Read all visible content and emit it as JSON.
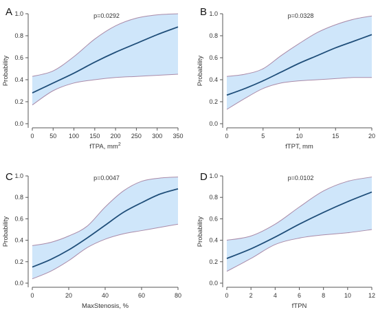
{
  "chart_data": [
    {
      "type": "line",
      "panel_label": "A",
      "annotation": "p=0.0292",
      "xlabel": "fTPA, mm",
      "xlabel_superscript": "2",
      "ylabel": "Probability",
      "xlim": [
        0,
        350
      ],
      "ylim": [
        0,
        1
      ],
      "xticks": [
        "0",
        "50",
        "100",
        "150",
        "200",
        "250",
        "300",
        "350"
      ],
      "yticks": [
        "0.0",
        "0.2",
        "0.4",
        "0.6",
        "0.8",
        "1.0"
      ],
      "x": [
        0,
        50,
        100,
        150,
        200,
        250,
        300,
        350
      ],
      "y": [
        0.28,
        0.37,
        0.46,
        0.56,
        0.65,
        0.73,
        0.81,
        0.88
      ],
      "ci_lower": [
        0.17,
        0.3,
        0.37,
        0.4,
        0.42,
        0.43,
        0.44,
        0.45
      ],
      "ci_upper": [
        0.43,
        0.48,
        0.61,
        0.77,
        0.89,
        0.96,
        0.99,
        1.0
      ],
      "colors": {
        "line": "#1f4e79",
        "band": "#cfe6fa",
        "band_edge": "#a98aa8"
      }
    },
    {
      "type": "line",
      "panel_label": "B",
      "annotation": "p=0.0328",
      "xlabel": "fTPT, mm",
      "ylabel": "Probability",
      "xlim": [
        0,
        20
      ],
      "ylim": [
        0,
        1
      ],
      "xticks": [
        "0",
        "5",
        "10",
        "15",
        "20"
      ],
      "yticks": [
        "0.0",
        "0.2",
        "0.4",
        "0.6",
        "0.8",
        "1.0"
      ],
      "x": [
        0,
        2.5,
        5,
        7.5,
        10,
        12.5,
        15,
        17.5,
        20
      ],
      "y": [
        0.26,
        0.32,
        0.39,
        0.47,
        0.55,
        0.62,
        0.69,
        0.75,
        0.81
      ],
      "ci_lower": [
        0.13,
        0.23,
        0.32,
        0.37,
        0.39,
        0.4,
        0.41,
        0.42,
        0.42
      ],
      "ci_upper": [
        0.43,
        0.45,
        0.5,
        0.62,
        0.73,
        0.83,
        0.9,
        0.95,
        0.98
      ],
      "colors": {
        "line": "#1f4e79",
        "band": "#cfe6fa",
        "band_edge": "#a98aa8"
      }
    },
    {
      "type": "line",
      "panel_label": "C",
      "annotation": "p=0.0047",
      "xlabel": "MaxStenosis, %",
      "ylabel": "Probability",
      "xlim": [
        0,
        80
      ],
      "ylim": [
        0,
        1
      ],
      "xticks": [
        "0",
        "20",
        "40",
        "60",
        "80"
      ],
      "yticks": [
        "0.0",
        "0.2",
        "0.4",
        "0.6",
        "0.8",
        "1.0"
      ],
      "x": [
        0,
        10,
        20,
        30,
        40,
        50,
        60,
        70,
        80
      ],
      "y": [
        0.15,
        0.22,
        0.31,
        0.42,
        0.54,
        0.66,
        0.75,
        0.83,
        0.88
      ],
      "ci_lower": [
        0.04,
        0.11,
        0.21,
        0.33,
        0.41,
        0.46,
        0.49,
        0.52,
        0.55
      ],
      "ci_upper": [
        0.35,
        0.38,
        0.44,
        0.53,
        0.71,
        0.86,
        0.95,
        0.98,
        0.99
      ],
      "colors": {
        "line": "#1f4e79",
        "band": "#cfe6fa",
        "band_edge": "#a98aa8"
      }
    },
    {
      "type": "line",
      "panel_label": "D",
      "annotation": "p=0.0102",
      "xlabel": "fTPN",
      "ylabel": "Probability",
      "xlim": [
        0,
        12
      ],
      "ylim": [
        0,
        1
      ],
      "xticks": [
        "0",
        "2",
        "4",
        "6",
        "8",
        "10",
        "12"
      ],
      "yticks": [
        "0.0",
        "0.2",
        "0.4",
        "0.6",
        "0.8",
        "1.0"
      ],
      "x": [
        0,
        2,
        4,
        6,
        8,
        10,
        12
      ],
      "y": [
        0.23,
        0.32,
        0.43,
        0.55,
        0.66,
        0.76,
        0.85
      ],
      "ci_lower": [
        0.11,
        0.23,
        0.36,
        0.42,
        0.45,
        0.47,
        0.5
      ],
      "ci_upper": [
        0.4,
        0.44,
        0.55,
        0.71,
        0.86,
        0.95,
        0.99
      ],
      "colors": {
        "line": "#1f4e79",
        "band": "#cfe6fa",
        "band_edge": "#a98aa8"
      }
    }
  ]
}
